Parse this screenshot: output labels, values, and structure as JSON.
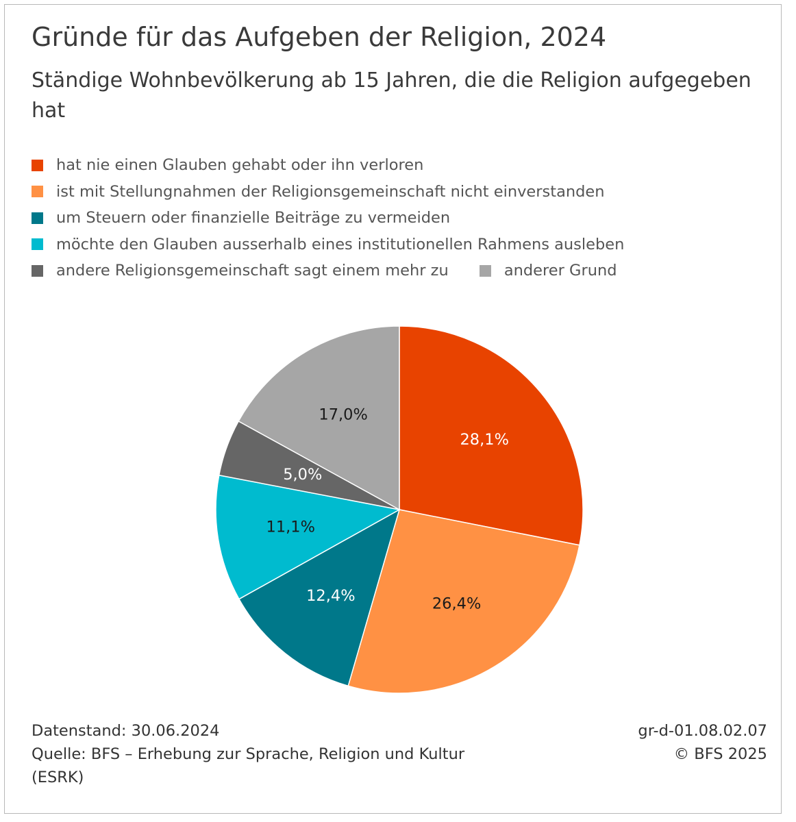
{
  "title": "Gründe für das Aufgeben der Religion, 2024",
  "subtitle": "Ständige Wohnbevölkerung ab 15 Jahren, die die Religion aufgegeben hat",
  "colors": {
    "dark_orange": "#E84300",
    "light_orange": "#FF9144",
    "dark_teal": "#00788A",
    "cyan": "#00BBCF",
    "dark_grey": "#666666",
    "light_grey": "#A6A6A6"
  },
  "chart_data": {
    "type": "pie",
    "categories": [
      "hat nie einen Glauben gehabt oder ihn verloren",
      "ist mit Stellungnahmen der Religionsgemeinschaft nicht einverstanden",
      "um Steuern oder finanzielle Beiträge zu vermeiden",
      "möchte den Glauben ausserhalb eines institutionellen Rahmens ausleben",
      "andere Religionsgemeinschaft sagt einem mehr zu",
      "anderer Grund"
    ],
    "values": [
      28.1,
      26.4,
      12.4,
      11.1,
      5.0,
      17.0
    ],
    "value_labels": [
      "28,1%",
      "26,4%",
      "12,4%",
      "11,1%",
      "5,0%",
      "17,0%"
    ],
    "colors": [
      "#E84300",
      "#FF9144",
      "#00788A",
      "#00BBCF",
      "#666666",
      "#A6A6A6"
    ],
    "label_colors": [
      "#ffffff",
      "#1a1a1a",
      "#ffffff",
      "#1a1a1a",
      "#ffffff",
      "#1a1a1a"
    ],
    "legend_position": "top",
    "start": "12 o'clock, clockwise"
  },
  "footer": {
    "datenstand": "Datenstand: 30.06.2024",
    "quelle": "Quelle: BFS – Erhebung zur Sprache, Religion und Kultur\n(ESRK)",
    "code": "gr-d-01.08.02.07",
    "copyright": "© BFS 2025"
  }
}
